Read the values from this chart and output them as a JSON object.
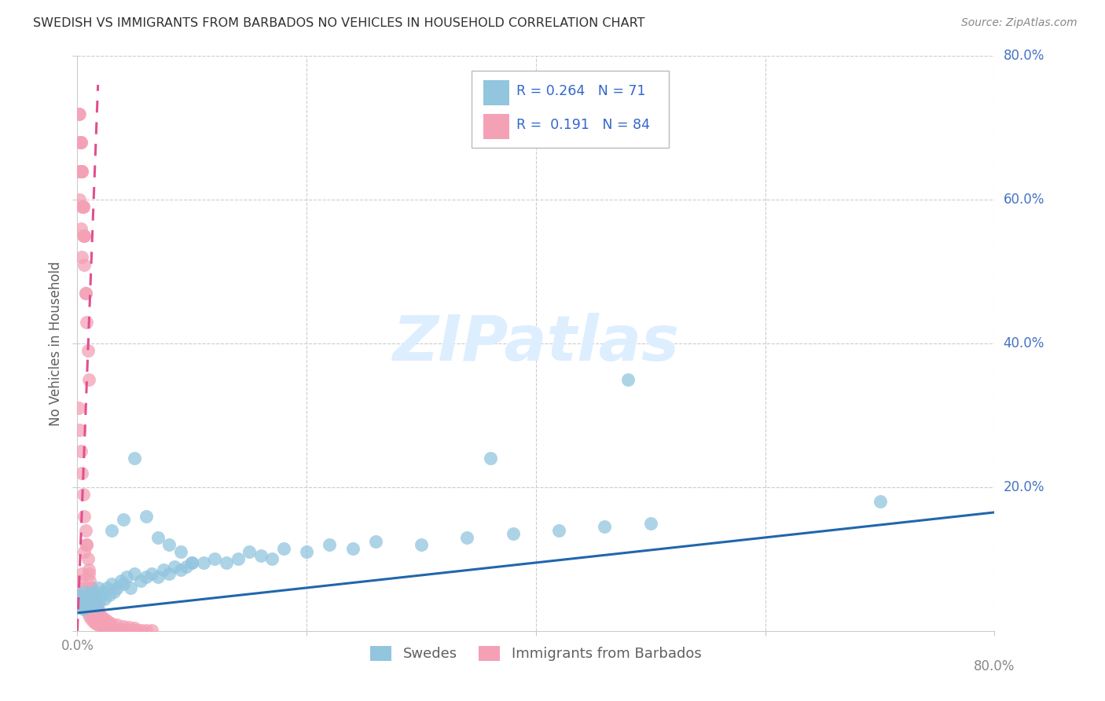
{
  "title": "SWEDISH VS IMMIGRANTS FROM BARBADOS NO VEHICLES IN HOUSEHOLD CORRELATION CHART",
  "source": "Source: ZipAtlas.com",
  "ylabel": "No Vehicles in Household",
  "xlim": [
    0.0,
    0.8
  ],
  "ylim": [
    0.0,
    0.8
  ],
  "swedes_R": 0.264,
  "swedes_N": 71,
  "barbados_R": 0.191,
  "barbados_N": 84,
  "swedes_color": "#92c5de",
  "barbados_color": "#f4a0b5",
  "swedes_line_color": "#2166ac",
  "barbados_line_color": "#e05090",
  "legend_text_color": "#3366cc",
  "watermark_color": "#ddeeff",
  "swedes_x": [
    0.001,
    0.002,
    0.003,
    0.004,
    0.005,
    0.006,
    0.007,
    0.008,
    0.009,
    0.01,
    0.011,
    0.012,
    0.013,
    0.014,
    0.015,
    0.016,
    0.017,
    0.018,
    0.019,
    0.02,
    0.022,
    0.024,
    0.026,
    0.028,
    0.03,
    0.032,
    0.035,
    0.038,
    0.04,
    0.043,
    0.046,
    0.05,
    0.055,
    0.06,
    0.065,
    0.07,
    0.075,
    0.08,
    0.085,
    0.09,
    0.095,
    0.1,
    0.11,
    0.12,
    0.13,
    0.14,
    0.15,
    0.16,
    0.17,
    0.18,
    0.2,
    0.22,
    0.24,
    0.26,
    0.3,
    0.34,
    0.38,
    0.42,
    0.46,
    0.5,
    0.48,
    0.36,
    0.7,
    0.03,
    0.04,
    0.05,
    0.06,
    0.07,
    0.08,
    0.09,
    0.1
  ],
  "swedes_y": [
    0.05,
    0.04,
    0.035,
    0.045,
    0.03,
    0.055,
    0.04,
    0.05,
    0.035,
    0.045,
    0.04,
    0.05,
    0.035,
    0.055,
    0.04,
    0.045,
    0.035,
    0.06,
    0.04,
    0.05,
    0.055,
    0.045,
    0.06,
    0.05,
    0.065,
    0.055,
    0.06,
    0.07,
    0.065,
    0.075,
    0.06,
    0.08,
    0.07,
    0.075,
    0.08,
    0.075,
    0.085,
    0.08,
    0.09,
    0.085,
    0.09,
    0.095,
    0.095,
    0.1,
    0.095,
    0.1,
    0.11,
    0.105,
    0.1,
    0.115,
    0.11,
    0.12,
    0.115,
    0.125,
    0.12,
    0.13,
    0.135,
    0.14,
    0.145,
    0.15,
    0.35,
    0.24,
    0.18,
    0.14,
    0.155,
    0.24,
    0.16,
    0.13,
    0.12,
    0.11,
    0.095
  ],
  "barbados_x": [
    0.001,
    0.002,
    0.003,
    0.004,
    0.005,
    0.006,
    0.007,
    0.008,
    0.009,
    0.01,
    0.002,
    0.003,
    0.004,
    0.005,
    0.006,
    0.003,
    0.004,
    0.005,
    0.006,
    0.007,
    0.001,
    0.002,
    0.003,
    0.004,
    0.005,
    0.006,
    0.007,
    0.008,
    0.009,
    0.01,
    0.011,
    0.012,
    0.013,
    0.014,
    0.015,
    0.016,
    0.017,
    0.018,
    0.019,
    0.02,
    0.022,
    0.025,
    0.028,
    0.03,
    0.035,
    0.04,
    0.045,
    0.05,
    0.01,
    0.012,
    0.008,
    0.006,
    0.004,
    0.003,
    0.002,
    0.001,
    0.005,
    0.007,
    0.009,
    0.011,
    0.013,
    0.015,
    0.017,
    0.019,
    0.021,
    0.023,
    0.025,
    0.027,
    0.029,
    0.031,
    0.033,
    0.036,
    0.039,
    0.042,
    0.045,
    0.048,
    0.052,
    0.056,
    0.06,
    0.065,
    0.001,
    0.002,
    0.003,
    0.004
  ],
  "barbados_y": [
    0.72,
    0.68,
    0.64,
    0.59,
    0.55,
    0.51,
    0.47,
    0.43,
    0.39,
    0.35,
    0.72,
    0.68,
    0.64,
    0.59,
    0.55,
    0.68,
    0.64,
    0.59,
    0.55,
    0.47,
    0.31,
    0.28,
    0.25,
    0.22,
    0.19,
    0.16,
    0.14,
    0.12,
    0.1,
    0.085,
    0.07,
    0.06,
    0.055,
    0.05,
    0.045,
    0.04,
    0.035,
    0.03,
    0.025,
    0.02,
    0.018,
    0.015,
    0.012,
    0.01,
    0.008,
    0.006,
    0.005,
    0.004,
    0.08,
    0.06,
    0.12,
    0.11,
    0.08,
    0.07,
    0.06,
    0.05,
    0.04,
    0.03,
    0.025,
    0.02,
    0.015,
    0.012,
    0.01,
    0.008,
    0.006,
    0.005,
    0.004,
    0.003,
    0.002,
    0.001,
    0.001,
    0.001,
    0.001,
    0.001,
    0.001,
    0.001,
    0.001,
    0.001,
    0.001,
    0.001,
    0.64,
    0.6,
    0.56,
    0.52
  ]
}
